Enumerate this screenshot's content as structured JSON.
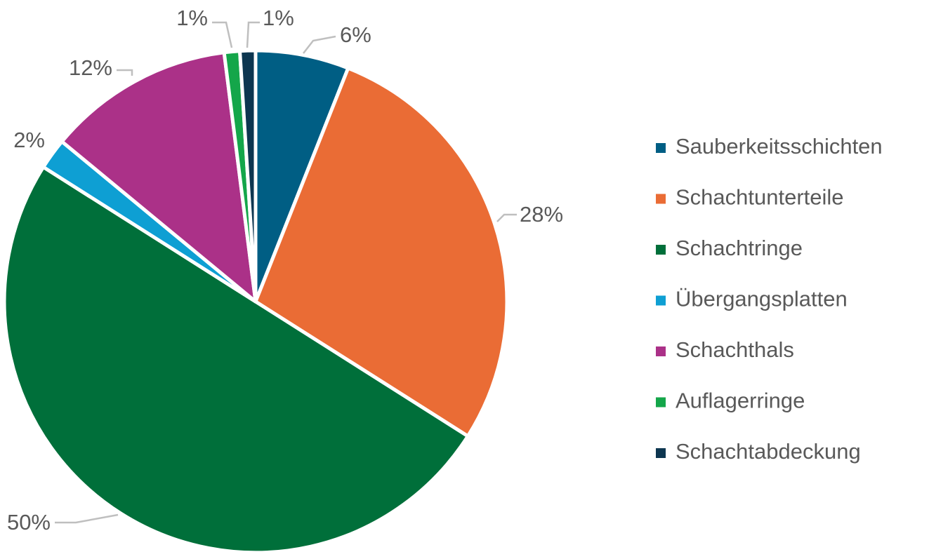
{
  "chart_data": {
    "type": "pie",
    "title": "",
    "legend_position": "right",
    "slices": [
      {
        "label": "Sauberkeitsschichten",
        "value": 6,
        "value_label": "6%",
        "color": "#005e84"
      },
      {
        "label": "Schachtunterteile",
        "value": 28,
        "value_label": "28%",
        "color": "#ea6c35"
      },
      {
        "label": "Schachtringe",
        "value": 50,
        "value_label": "50%",
        "color": "#006f3a"
      },
      {
        "label": "Übergangsplatten",
        "value": 2,
        "value_label": "2%",
        "color": "#0e9fd3"
      },
      {
        "label": "Schachthals",
        "value": 12,
        "value_label": "12%",
        "color": "#ab3188"
      },
      {
        "label": "Auflagerringe",
        "value": 1,
        "value_label": "1%",
        "color": "#14a64a"
      },
      {
        "label": "Schachtabdeckung",
        "value": 1,
        "value_label": "1%",
        "color": "#0d3650"
      }
    ]
  }
}
